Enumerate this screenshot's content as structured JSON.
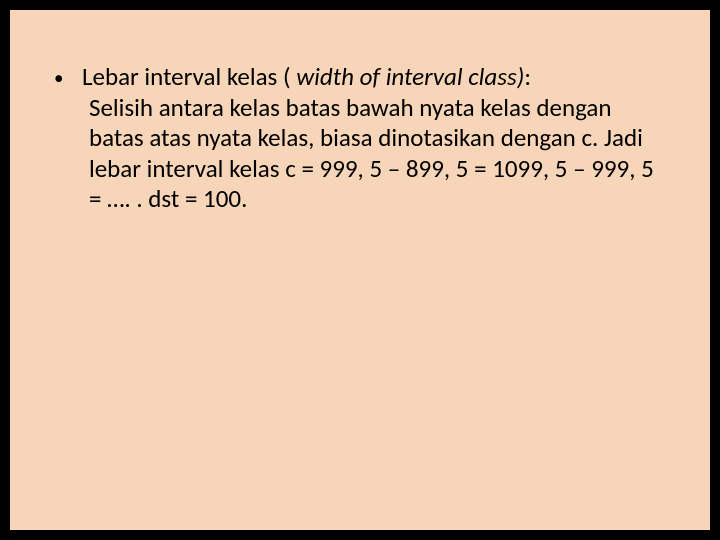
{
  "slide": {
    "background_color": "#f6d5b8",
    "outer_background": "#000000",
    "text_color": "#000000",
    "font_family": "Calibri",
    "font_size_pt": 19,
    "bullet": {
      "marker": "•",
      "term_plain": "Lebar interval kelas ( ",
      "term_italic": "width of interval class)",
      "term_tail": ":",
      "description": "Selisih antara kelas batas bawah nyata kelas dengan batas atas nyata kelas, biasa dinotasikan dengan c. Jadi lebar interval kelas c = 999, 5 – 899, 5 = 1099, 5 – 999, 5 = …. . dst = 100."
    }
  }
}
